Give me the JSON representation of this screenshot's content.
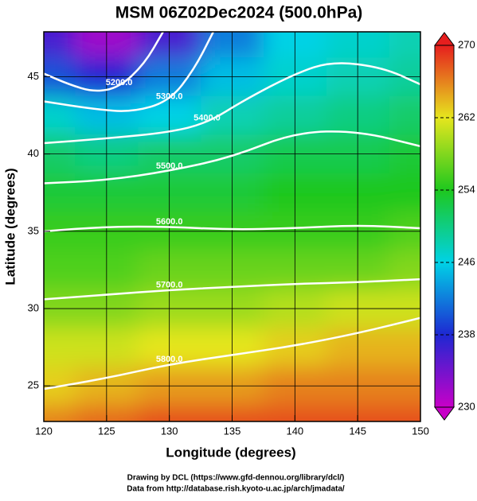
{
  "chart_data": {
    "type": "heatmap",
    "title": "MSM 06Z02Dec2024 (500.0hPa)",
    "x_label": "Longitude (degrees)",
    "y_label": "Latitude  (degrees)",
    "xlim": [
      120,
      150
    ],
    "ylim": [
      22.7,
      47.9
    ],
    "xticks": [
      120,
      125,
      130,
      135,
      140,
      145,
      150
    ],
    "yticks": [
      25,
      30,
      35,
      40,
      45
    ],
    "grid": true,
    "x": [
      120,
      125,
      130,
      135,
      140,
      145,
      150
    ],
    "y": [
      47.5,
      45,
      42.5,
      40,
      37.5,
      35,
      32.5,
      30,
      27.5,
      25,
      22.5
    ],
    "z": [
      [
        236,
        232,
        236,
        242,
        246,
        247,
        248
      ],
      [
        240,
        238,
        242,
        245,
        247,
        248,
        249
      ],
      [
        247,
        245,
        246,
        248,
        249,
        250,
        251
      ],
      [
        251,
        250,
        251,
        251,
        252,
        252,
        253
      ],
      [
        253,
        253,
        253,
        253,
        254,
        254,
        254
      ],
      [
        255,
        255,
        255,
        255,
        255,
        255,
        256
      ],
      [
        256,
        256,
        257,
        257,
        257,
        257,
        258
      ],
      [
        258,
        258,
        259,
        259,
        260,
        261,
        261
      ],
      [
        261,
        261,
        262,
        262,
        263,
        264,
        264
      ],
      [
        263,
        264,
        265,
        265,
        266,
        266,
        266
      ],
      [
        266,
        267,
        268,
        268,
        268,
        268,
        268
      ]
    ],
    "colormap": [
      "#c800c8",
      "#1e28d2",
      "#00d2e6",
      "#1ec81e",
      "#e6e61e",
      "#e61e1e"
    ],
    "colorbar_lim": [
      230,
      270
    ],
    "colorbar_ticks": [
      230,
      238,
      246,
      254,
      262,
      270
    ],
    "contours": [
      {
        "label": "5200.0",
        "lon": [
          120,
          122,
          124,
          126,
          128,
          129.5
        ],
        "lat": [
          45.2,
          44.5,
          44.0,
          44.3,
          45.8,
          47.9
        ]
      },
      {
        "label": "5300.0",
        "lon": [
          120,
          124,
          127,
          130,
          132,
          133.5
        ],
        "lat": [
          43.4,
          42.9,
          42.7,
          43.4,
          45.5,
          47.9
        ]
      },
      {
        "label": "5400.0",
        "lon": [
          120,
          125,
          130,
          133,
          136,
          140,
          143,
          147,
          150
        ],
        "lat": [
          40.7,
          41.0,
          41.4,
          42.0,
          43.5,
          45.2,
          46.0,
          45.6,
          44.5
        ]
      },
      {
        "label": "5500.0",
        "lon": [
          120,
          125,
          130,
          135,
          140,
          145,
          150
        ],
        "lat": [
          38.1,
          38.3,
          38.9,
          39.8,
          41.4,
          41.5,
          40.5
        ]
      },
      {
        "label": "5600.0",
        "lon": [
          120,
          125,
          130,
          135,
          140,
          145,
          150
        ],
        "lat": [
          35.0,
          35.3,
          35.3,
          35.1,
          35.2,
          35.4,
          35.2
        ]
      },
      {
        "label": "5700.0",
        "lon": [
          120,
          125,
          130,
          135,
          140,
          145,
          150
        ],
        "lat": [
          30.6,
          30.9,
          31.2,
          31.4,
          31.6,
          31.7,
          31.9
        ]
      },
      {
        "label": "5800.0",
        "lon": [
          120,
          125,
          130,
          135,
          140,
          145,
          150
        ],
        "lat": [
          24.8,
          25.5,
          26.4,
          27.0,
          27.6,
          28.4,
          29.4
        ]
      }
    ],
    "credits": [
      "Drawing by DCL (https://www.gfd-dennou.org/library/dcl/)",
      "Data from http://database.rish.kyoto-u.ac.jp/arch/jmadata/"
    ]
  }
}
